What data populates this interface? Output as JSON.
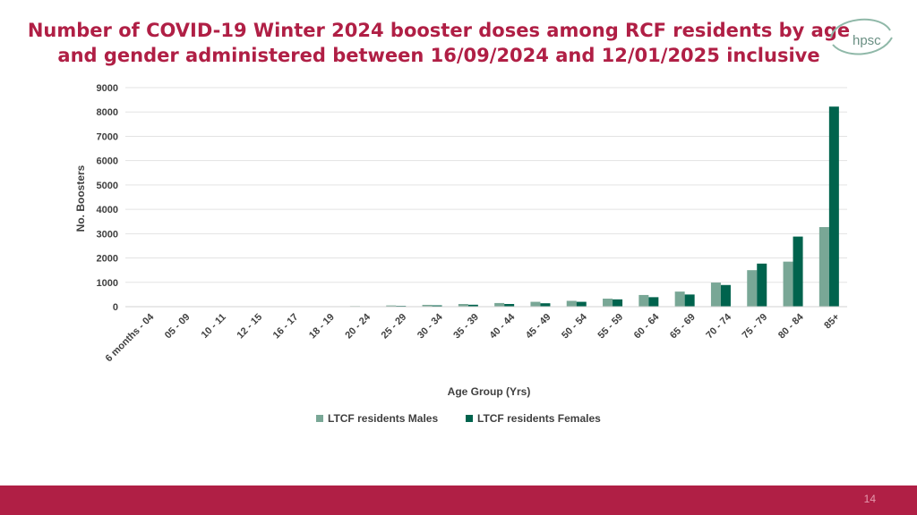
{
  "title_line1": "Number of COVID-19 Winter 2024 booster doses among RCF residents by age",
  "title_line2": "and gender administered between 16/09/2024 and 12/01/2025 inclusive",
  "logo_text": "hpsc",
  "page_number": "14",
  "colors": {
    "title": "#b01f45",
    "males": "#79a796",
    "females": "#00634d",
    "footer": "#b01f45"
  },
  "chart_data": {
    "type": "bar",
    "title": "Number of COVID-19 Winter 2024 booster doses among RCF residents by age and gender administered between 16/09/2024 and 12/01/2025 inclusive",
    "xlabel": "Age Group (Yrs)",
    "ylabel": "No. Boosters",
    "ylim": [
      0,
      9000
    ],
    "yticks": [
      0,
      1000,
      2000,
      3000,
      4000,
      5000,
      6000,
      7000,
      8000,
      9000
    ],
    "grid": true,
    "legend_position": "bottom",
    "categories": [
      "6 months - 04",
      "05 - 09",
      "10 - 11",
      "12 - 15",
      "16 - 17",
      "18 - 19",
      "20 - 24",
      "25 - 29",
      "30 - 34",
      "35 - 39",
      "40 - 44",
      "45 - 49",
      "50 - 54",
      "55 - 59",
      "60 - 64",
      "65 - 69",
      "70 - 74",
      "75 - 79",
      "80 - 84",
      "85+"
    ],
    "series": [
      {
        "name": "LTCF residents Males",
        "values": [
          0,
          0,
          0,
          5,
          5,
          10,
          25,
          50,
          75,
          110,
          150,
          200,
          240,
          330,
          480,
          620,
          990,
          1500,
          1850,
          3270
        ]
      },
      {
        "name": "LTCF residents Females",
        "values": [
          0,
          0,
          0,
          3,
          4,
          6,
          15,
          35,
          55,
          80,
          110,
          140,
          200,
          300,
          390,
          500,
          890,
          1770,
          2880,
          8220
        ]
      }
    ]
  }
}
